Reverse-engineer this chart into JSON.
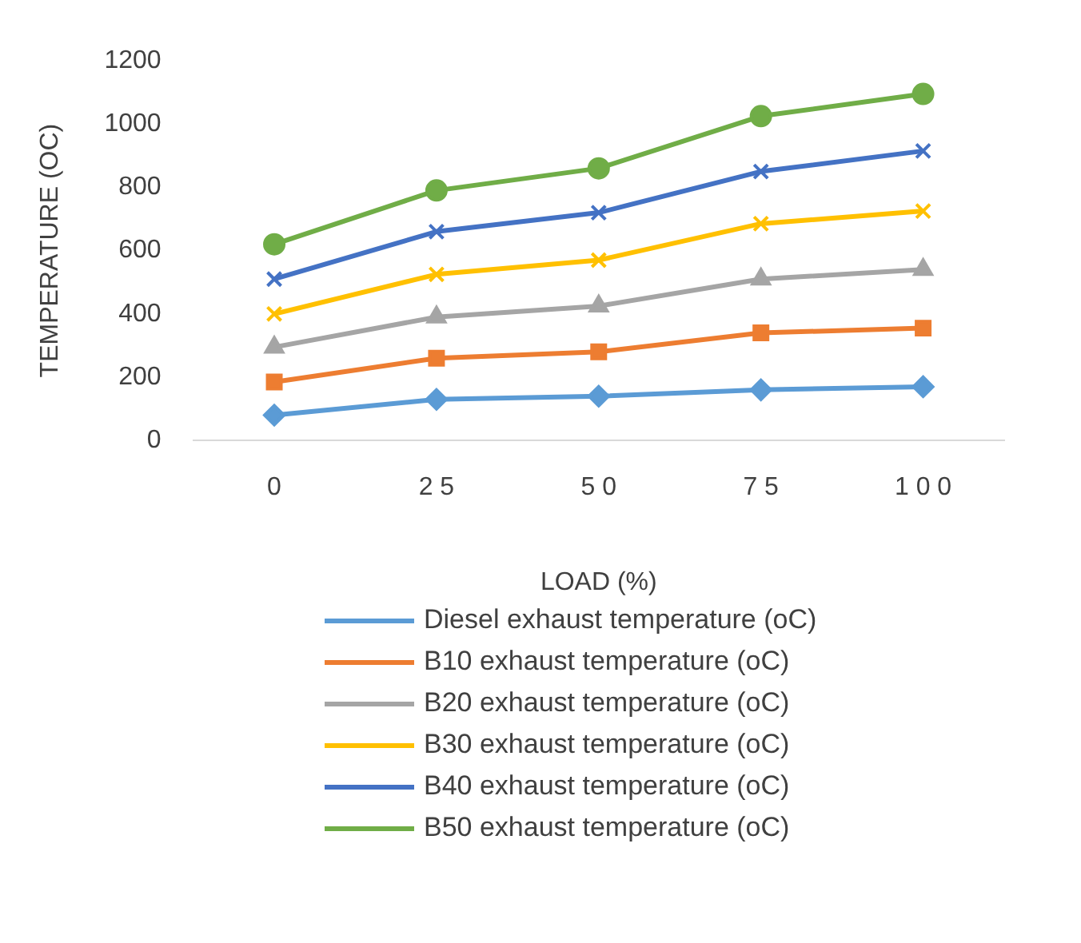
{
  "chart_data": {
    "type": "line",
    "xlabel": "LOAD (%)",
    "ylabel": "TEMPERATURE (OC)",
    "categories": [
      "0",
      "2 5",
      "5 0",
      "7 5",
      "1 0 0"
    ],
    "ylim": [
      0,
      1200
    ],
    "yticks": [
      0,
      200,
      400,
      600,
      800,
      1000,
      1200
    ],
    "grid": false,
    "legend": "bottom",
    "series": [
      {
        "name": "Diesel exhaust temperature (oC)",
        "color": "#5b9bd5",
        "marker": "diamond",
        "values": [
          80,
          130,
          140,
          160,
          170
        ]
      },
      {
        "name": "B10 exhaust temperature (oC)",
        "color": "#ed7d31",
        "marker": "square",
        "values": [
          185,
          260,
          280,
          340,
          355
        ]
      },
      {
        "name": "B20 exhaust temperature (oC)",
        "color": "#a5a5a5",
        "marker": "triangle",
        "values": [
          295,
          390,
          425,
          510,
          540
        ]
      },
      {
        "name": "B30 exhaust temperature (oC)",
        "color": "#ffc000",
        "marker": "cross",
        "values": [
          400,
          525,
          570,
          685,
          725
        ]
      },
      {
        "name": "B40 exhaust temperature (oC)",
        "color": "#4472c4",
        "marker": "cross",
        "values": [
          510,
          660,
          720,
          850,
          915
        ]
      },
      {
        "name": "B50 exhaust temperature (oC)",
        "color": "#70ad47",
        "marker": "circle",
        "values": [
          620,
          790,
          860,
          1025,
          1095
        ]
      }
    ]
  }
}
